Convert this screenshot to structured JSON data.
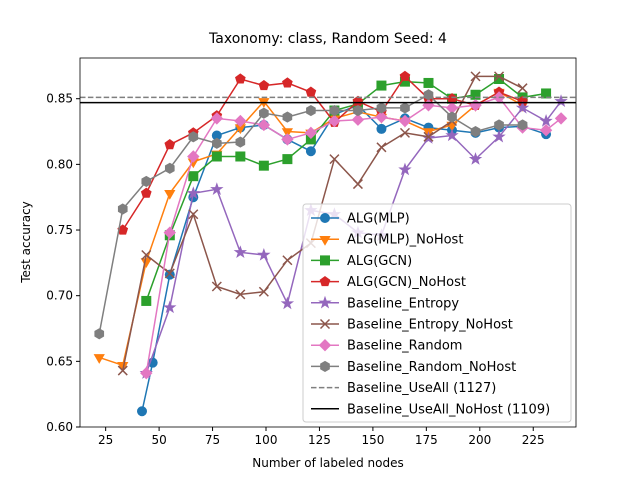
{
  "chart_data": {
    "type": "line",
    "title": "Taxonomy: class, Random Seed: 4",
    "x_label": "Number of labeled nodes",
    "y_label": "Test accuracy",
    "xlim": [
      13,
      245
    ],
    "ylim": [
      0.6,
      0.881
    ],
    "xticks": [
      25,
      50,
      75,
      100,
      125,
      150,
      175,
      200,
      225
    ],
    "yticks": [
      {
        "value": 0.6,
        "label": "0.60"
      },
      0.65,
      {
        "value": 0.7,
        "label": "0.70"
      },
      0.75,
      {
        "value": 0.8,
        "label": "0.80"
      },
      0.85
    ],
    "legend_position": "lower right",
    "series": [
      {
        "name": "ALG(MLP)",
        "color": "#1f77b4",
        "marker": "circle",
        "x": [
          42,
          47,
          55,
          66,
          77,
          88,
          99,
          110,
          121,
          132,
          143,
          154,
          165,
          176,
          187,
          198,
          209,
          220,
          231
        ],
        "values": [
          0.612,
          0.649,
          0.716,
          0.775,
          0.822,
          0.828,
          0.83,
          0.819,
          0.81,
          0.838,
          0.845,
          0.827,
          0.835,
          0.828,
          0.826,
          0.824,
          0.828,
          0.829,
          0.823
        ]
      },
      {
        "name": "ALG(MLP)_NoHost",
        "color": "#ff7f0e",
        "marker": "triangle",
        "x": [
          22,
          33,
          44,
          55,
          66,
          77,
          88,
          99,
          110,
          121,
          132,
          143,
          154,
          165,
          176,
          187,
          198,
          209,
          220
        ],
        "values": [
          0.653,
          0.647,
          0.726,
          0.778,
          0.802,
          0.808,
          0.828,
          0.848,
          0.825,
          0.824,
          0.835,
          0.84,
          0.836,
          0.833,
          0.825,
          0.83,
          0.845,
          0.855,
          0.845
        ]
      },
      {
        "name": "ALG(GCN)",
        "color": "#2ca02c",
        "marker": "square",
        "x": [
          44,
          55,
          66,
          77,
          88,
          99,
          110,
          121,
          132,
          143,
          154,
          165,
          176,
          187,
          198,
          209,
          220,
          231
        ],
        "values": [
          0.696,
          0.746,
          0.791,
          0.806,
          0.806,
          0.799,
          0.804,
          0.819,
          0.841,
          0.846,
          0.86,
          0.863,
          0.862,
          0.85,
          0.853,
          0.865,
          0.851,
          0.854
        ]
      },
      {
        "name": "ALG(GCN)_NoHost",
        "color": "#d62728",
        "marker": "pentagon",
        "x": [
          33,
          44,
          55,
          66,
          77,
          88,
          99,
          110,
          121,
          132,
          143,
          154,
          165,
          176,
          187,
          198,
          209,
          220
        ],
        "values": [
          0.75,
          0.778,
          0.815,
          0.824,
          0.837,
          0.865,
          0.86,
          0.862,
          0.855,
          0.832,
          0.848,
          0.84,
          0.867,
          0.85,
          0.85,
          0.845,
          0.855,
          0.848
        ]
      },
      {
        "name": "Baseline_Entropy",
        "color": "#9467bd",
        "marker": "star",
        "x": [
          44,
          55,
          66,
          77,
          88,
          99,
          110,
          121,
          132,
          143,
          154,
          165,
          176,
          187,
          198,
          209,
          220,
          231,
          238
        ],
        "values": [
          0.641,
          0.691,
          0.778,
          0.781,
          0.733,
          0.731,
          0.694,
          0.765,
          0.762,
          0.748,
          0.746,
          0.796,
          0.82,
          0.822,
          0.804,
          0.821,
          0.843,
          0.833,
          0.848
        ]
      },
      {
        "name": "Baseline_Entropy_NoHost",
        "color": "#8c564b",
        "marker": "x",
        "x": [
          33,
          44,
          55,
          66,
          77,
          88,
          99,
          110,
          121,
          132,
          143,
          154,
          165,
          176,
          187,
          198,
          209,
          220
        ],
        "values": [
          0.643,
          0.731,
          0.717,
          0.762,
          0.707,
          0.701,
          0.703,
          0.727,
          0.74,
          0.804,
          0.785,
          0.813,
          0.824,
          0.821,
          0.833,
          0.867,
          0.867,
          0.858
        ]
      },
      {
        "name": "Baseline_Random",
        "color": "#e377c2",
        "marker": "diamond",
        "x": [
          44,
          55,
          66,
          77,
          88,
          99,
          110,
          121,
          132,
          143,
          154,
          165,
          176,
          187,
          198,
          209,
          220,
          231,
          238
        ],
        "values": [
          0.641,
          0.748,
          0.806,
          0.835,
          0.833,
          0.83,
          0.819,
          0.824,
          0.833,
          0.834,
          0.836,
          0.833,
          0.845,
          0.843,
          0.845,
          0.851,
          0.828,
          0.826,
          0.835
        ]
      },
      {
        "name": "Baseline_Random_NoHost",
        "color": "#7f7f7f",
        "marker": "hexagon",
        "x": [
          22,
          33,
          44,
          55,
          66,
          77,
          88,
          99,
          110,
          121,
          132,
          143,
          154,
          165,
          176,
          187,
          198,
          209,
          220
        ],
        "values": [
          0.671,
          0.766,
          0.787,
          0.797,
          0.821,
          0.816,
          0.817,
          0.839,
          0.836,
          0.841,
          0.841,
          0.841,
          0.843,
          0.843,
          0.853,
          0.836,
          0.825,
          0.83,
          0.83
        ]
      }
    ],
    "hlines": [
      {
        "name": "Baseline_UseAll (1127)",
        "value": 0.851,
        "color": "#7f7f7f",
        "dashed": true
      },
      {
        "name": "Baseline_UseAll_NoHost (1109)",
        "value": 0.847,
        "color": "#000000",
        "dashed": false
      }
    ]
  }
}
